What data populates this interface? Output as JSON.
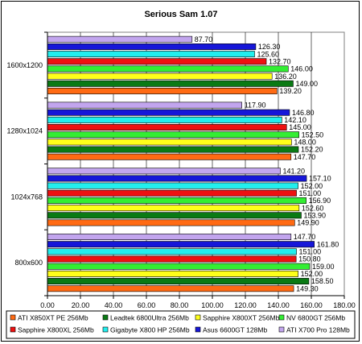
{
  "chart_data": {
    "type": "bar",
    "orientation": "horizontal",
    "title": "Serious Sam 1.07",
    "xlabel": "",
    "ylabel": "",
    "xlim": [
      0,
      180
    ],
    "x_ticks": [
      "0.00",
      "20.00",
      "40.00",
      "60.00",
      "80.00",
      "100.00",
      "120.00",
      "140.00",
      "160.00",
      "180.00"
    ],
    "grid": true,
    "legend_position": "bottom",
    "categories": [
      "1600x1200",
      "1280x1024",
      "1024x768",
      "800x600"
    ],
    "series": [
      {
        "name": "ATI X850XT PE 256Mb",
        "color": "#ff6a13",
        "values": [
          139.2,
          147.7,
          149.9,
          149.3
        ],
        "labels": [
          "139.20",
          "147.70",
          "149.90",
          "149.30"
        ]
      },
      {
        "name": "Leadtek 6800Ultra 256Mb",
        "color": "#0a7a14",
        "values": [
          149.0,
          152.2,
          153.9,
          158.5
        ],
        "labels": [
          "149.00",
          "152.20",
          "153.90",
          "158.50"
        ]
      },
      {
        "name": "Sapphire X800XT 256Mb",
        "color": "#ffff1a",
        "values": [
          136.2,
          148.0,
          152.6,
          152.0
        ],
        "labels": [
          "136.20",
          "148.00",
          "152.60",
          "152.00"
        ]
      },
      {
        "name": "NV 6800GT 256Mb",
        "color": "#33ee33",
        "values": [
          146.0,
          152.5,
          156.9,
          159.0
        ],
        "labels": [
          "146.00",
          "152.50",
          "156.90",
          "159.00"
        ]
      },
      {
        "name": "Sapphire X800XL 256Mb",
        "color": "#ee1111",
        "values": [
          132.7,
          145.0,
          151.0,
          150.8
        ],
        "labels": [
          "132.70",
          "145.00",
          "151.00",
          "150.80"
        ]
      },
      {
        "name": "Gigabyte X800 HP 256Mb",
        "color": "#22eeee",
        "values": [
          125.6,
          142.1,
          152.0,
          151.0
        ],
        "labels": [
          "125.60",
          "142.10",
          "152.00",
          "151.00"
        ]
      },
      {
        "name": "Asus 6600GT 128Mb",
        "color": "#1616d8",
        "values": [
          126.3,
          146.8,
          157.1,
          161.8
        ],
        "labels": [
          "126.30",
          "146.80",
          "157.10",
          "161.80"
        ]
      },
      {
        "name": "ATI X700 Pro 128Mb",
        "color": "#c2a5ee",
        "values": [
          87.7,
          117.9,
          141.2,
          147.7
        ],
        "labels": [
          "87.70",
          "117.90",
          "141.20",
          "147.70"
        ]
      }
    ]
  }
}
